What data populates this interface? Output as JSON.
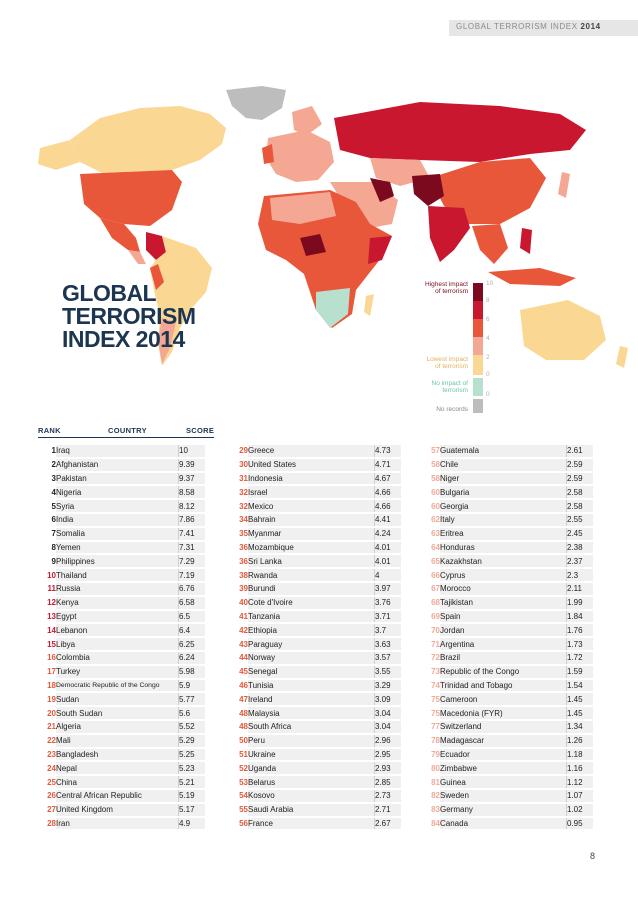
{
  "header": {
    "text": "GLOBAL TERRORISM INDEX",
    "year": "2014"
  },
  "title": {
    "line1": "GLOBAL",
    "line2": "TERRORISM",
    "line3": "INDEX 2014"
  },
  "legend": {
    "high_label_1": "Highest impact",
    "high_label_2": "of terrorism",
    "low_label_1": "Lowest impact",
    "low_label_2": "of terrorism",
    "no_impact_1": "No impact of",
    "no_impact_2": "terrorism",
    "no_records": "No records",
    "ticks": [
      "10",
      "8",
      "6",
      "4",
      "2",
      "0",
      "0"
    ],
    "colors": {
      "c10": "#7c0a1f",
      "c8": "#c8172f",
      "c6": "#e8573a",
      "c4": "#f4a894",
      "c2": "#fbd794",
      "c0": "#b8e0cf",
      "none": "#bdbdbd"
    }
  },
  "columns": {
    "rank": "RANK",
    "country": "COUNTRY",
    "score": "SCORE"
  },
  "rankings": [
    [
      "1",
      "Iraq",
      "10"
    ],
    [
      "2",
      "Afghanistan",
      "9.39"
    ],
    [
      "3",
      "Pakistan",
      "9.37"
    ],
    [
      "4",
      "Nigeria",
      "8.58"
    ],
    [
      "5",
      "Syria",
      "8.12"
    ],
    [
      "6",
      "India",
      "7.86"
    ],
    [
      "7",
      "Somalia",
      "7.41"
    ],
    [
      "8",
      "Yemen",
      "7.31"
    ],
    [
      "9",
      "Philippines",
      "7.29"
    ],
    [
      "10",
      "Thailand",
      "7.19"
    ],
    [
      "11",
      "Russia",
      "6.76"
    ],
    [
      "12",
      "Kenya",
      "6.58"
    ],
    [
      "13",
      "Egypt",
      "6.5"
    ],
    [
      "14",
      "Lebanon",
      "6.4"
    ],
    [
      "15",
      "Libya",
      "6.25"
    ],
    [
      "16",
      "Colombia",
      "6.24"
    ],
    [
      "17",
      "Turkey",
      "5.98"
    ],
    [
      "18",
      "Democratic Republic of the Congo",
      "5.9"
    ],
    [
      "19",
      "Sudan",
      "5.77"
    ],
    [
      "20",
      "South Sudan",
      "5.6"
    ],
    [
      "21",
      "Algeria",
      "5.52"
    ],
    [
      "22",
      "Mali",
      "5.29"
    ],
    [
      "23",
      "Bangladesh",
      "5.25"
    ],
    [
      "24",
      "Nepal",
      "5.23"
    ],
    [
      "25",
      "China",
      "5.21"
    ],
    [
      "26",
      "Central African Republic",
      "5.19"
    ],
    [
      "27",
      "United Kingdom",
      "5.17"
    ],
    [
      "28",
      "Iran",
      "4.9"
    ],
    [
      "29",
      "Greece",
      "4.73"
    ],
    [
      "30",
      "United States",
      "4.71"
    ],
    [
      "31",
      "Indonesia",
      "4.67"
    ],
    [
      "32",
      "Israel",
      "4.66"
    ],
    [
      "32",
      "Mexico",
      "4.66"
    ],
    [
      "34",
      "Bahrain",
      "4.41"
    ],
    [
      "35",
      "Myanmar",
      "4.24"
    ],
    [
      "36",
      "Mozambique",
      "4.01"
    ],
    [
      "36",
      "Sri Lanka",
      "4.01"
    ],
    [
      "38",
      "Rwanda",
      "4"
    ],
    [
      "39",
      "Burundi",
      "3.97"
    ],
    [
      "40",
      "Cote d'Ivoire",
      "3.76"
    ],
    [
      "41",
      "Tanzania",
      "3.71"
    ],
    [
      "42",
      "Ethiopia",
      "3.7"
    ],
    [
      "43",
      "Paraguay",
      "3.63"
    ],
    [
      "44",
      "Norway",
      "3.57"
    ],
    [
      "45",
      "Senegal",
      "3.55"
    ],
    [
      "46",
      "Tunisia",
      "3.29"
    ],
    [
      "47",
      "Ireland",
      "3.09"
    ],
    [
      "48",
      "Malaysia",
      "3.04"
    ],
    [
      "48",
      "South Africa",
      "3.04"
    ],
    [
      "50",
      "Peru",
      "2.96"
    ],
    [
      "51",
      "Ukraine",
      "2.95"
    ],
    [
      "52",
      "Uganda",
      "2.93"
    ],
    [
      "53",
      "Belarus",
      "2.85"
    ],
    [
      "54",
      "Kosovo",
      "2.73"
    ],
    [
      "55",
      "Saudi Arabia",
      "2.71"
    ],
    [
      "56",
      "France",
      "2.67"
    ],
    [
      "57",
      "Guatemala",
      "2.61"
    ],
    [
      "58",
      "Chile",
      "2.59"
    ],
    [
      "58",
      "Niger",
      "2.59"
    ],
    [
      "60",
      "Bulgaria",
      "2.58"
    ],
    [
      "60",
      "Georgia",
      "2.58"
    ],
    [
      "62",
      "Italy",
      "2.55"
    ],
    [
      "63",
      "Eritrea",
      "2.45"
    ],
    [
      "64",
      "Honduras",
      "2.38"
    ],
    [
      "65",
      "Kazakhstan",
      "2.37"
    ],
    [
      "66",
      "Cyprus",
      "2.3"
    ],
    [
      "67",
      "Morocco",
      "2.11"
    ],
    [
      "68",
      "Tajikistan",
      "1.99"
    ],
    [
      "69",
      "Spain",
      "1.84"
    ],
    [
      "70",
      "Jordan",
      "1.76"
    ],
    [
      "71",
      "Argentina",
      "1.73"
    ],
    [
      "72",
      "Brazil",
      "1.72"
    ],
    [
      "73",
      "Republic of the Congo",
      "1.59"
    ],
    [
      "74",
      "Trinidad and Tobago",
      "1.54"
    ],
    [
      "75",
      "Cameroon",
      "1.45"
    ],
    [
      "75",
      "Macedonia (FYR)",
      "1.45"
    ],
    [
      "77",
      "Switzerland",
      "1.34"
    ],
    [
      "78",
      "Madagascar",
      "1.26"
    ],
    [
      "79",
      "Ecuador",
      "1.18"
    ],
    [
      "80",
      "Zimbabwe",
      "1.16"
    ],
    [
      "81",
      "Guinea",
      "1.12"
    ],
    [
      "82",
      "Sweden",
      "1.07"
    ],
    [
      "83",
      "Germany",
      "1.02"
    ],
    [
      "84",
      "Canada",
      "0.95"
    ]
  ],
  "page_number": "8"
}
